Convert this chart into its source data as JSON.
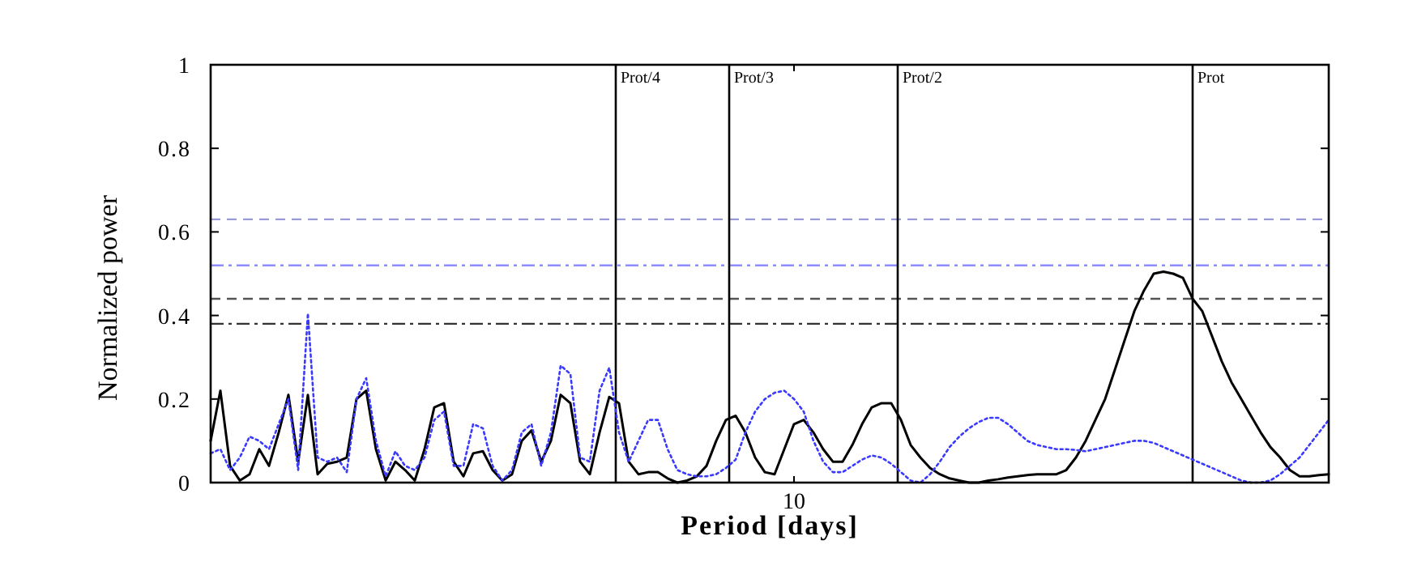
{
  "chart_data": {
    "type": "line",
    "xlabel": "Period [days]",
    "ylabel": "Normalized power",
    "categories": [
      null,
      null,
      null,
      null,
      null,
      null,
      null,
      null,
      null,
      null,
      null,
      null,
      null,
      null,
      null,
      null,
      null,
      null,
      null,
      null,
      null,
      null,
      null,
      null,
      null,
      null,
      null,
      null,
      null,
      null,
      null,
      null,
      null,
      null,
      null,
      null,
      null,
      null,
      null,
      null,
      null,
      null,
      null,
      null,
      null,
      null,
      null,
      null,
      null,
      null,
      null,
      null,
      null,
      null,
      null,
      null,
      null,
      null,
      null,
      null,
      "10",
      null,
      null,
      null,
      null,
      null,
      null,
      null,
      null,
      null,
      null,
      null,
      null,
      null,
      null,
      null,
      null,
      null,
      null,
      null,
      null,
      null,
      null,
      null,
      null,
      null,
      null,
      null,
      null,
      null,
      null,
      null,
      null,
      null,
      null,
      null,
      null,
      null,
      null,
      null,
      null,
      null,
      null,
      null,
      null,
      null,
      null,
      null,
      null,
      null,
      null,
      null,
      null,
      null,
      null,
      null
    ],
    "ylim": [
      0,
      1
    ],
    "yticks": [
      0,
      0.2,
      0.4,
      0.6,
      0.8,
      1
    ],
    "grid": false,
    "marker": "none",
    "series": [
      {
        "color": "#000000",
        "line_style": "solid",
        "values": [
          0.1,
          0.22,
          0.04,
          0.005,
          0.02,
          0.08,
          0.04,
          0.12,
          0.21,
          0.05,
          0.21,
          0.02,
          0.045,
          0.05,
          0.06,
          0.2,
          0.22,
          0.08,
          0.005,
          0.05,
          0.03,
          0.005,
          0.08,
          0.18,
          0.19,
          0.05,
          0.015,
          0.07,
          0.075,
          0.03,
          0.005,
          0.02,
          0.1,
          0.125,
          0.05,
          0.1,
          0.21,
          0.19,
          0.05,
          0.02,
          0.12,
          0.205,
          0.19,
          0.05,
          0.02,
          0.025,
          0.025,
          0.01,
          0,
          0.005,
          0.015,
          0.04,
          0.1,
          0.15,
          0.16,
          0.12,
          0.06,
          0.025,
          0.02,
          0.08,
          0.14,
          0.15,
          0.12,
          0.08,
          0.05,
          0.05,
          0.09,
          0.14,
          0.18,
          0.19,
          0.19,
          0.15,
          0.09,
          0.06,
          0.035,
          0.02,
          0.01,
          0.005,
          0,
          0,
          0.005,
          0.008,
          0.012,
          0.015,
          0.018,
          0.02,
          0.02,
          0.02,
          0.03,
          0.06,
          0.1,
          0.15,
          0.2,
          0.27,
          0.34,
          0.41,
          0.46,
          0.5,
          0.505,
          0.5,
          0.49,
          0.44,
          0.41,
          0.35,
          0.29,
          0.24,
          0.2,
          0.16,
          0.12,
          0.085,
          0.06,
          0.03,
          0.015,
          0.015,
          0.018,
          0.02
        ]
      },
      {
        "color": "#3a3aff",
        "line_style": "dotted",
        "values": [
          0.07,
          0.08,
          0.03,
          0.06,
          0.11,
          0.1,
          0.08,
          0.14,
          0.2,
          0.03,
          0.405,
          0.06,
          0.05,
          0.06,
          0.025,
          0.2,
          0.25,
          0.1,
          0.015,
          0.075,
          0.04,
          0.03,
          0.06,
          0.15,
          0.17,
          0.04,
          0.04,
          0.14,
          0.13,
          0.04,
          0.005,
          0.03,
          0.12,
          0.14,
          0.04,
          0.12,
          0.28,
          0.26,
          0.06,
          0.05,
          0.22,
          0.275,
          0.12,
          0.05,
          0.1,
          0.15,
          0.15,
          0.08,
          0.03,
          0.02,
          0.015,
          0.015,
          0.02,
          0.035,
          0.055,
          0.12,
          0.17,
          0.2,
          0.215,
          0.22,
          0.2,
          0.17,
          0.1,
          0.05,
          0.025,
          0.025,
          0.04,
          0.055,
          0.065,
          0.06,
          0.045,
          0.025,
          0.005,
          0,
          0.02,
          0.05,
          0.085,
          0.11,
          0.13,
          0.145,
          0.155,
          0.155,
          0.14,
          0.12,
          0.1,
          0.09,
          0.085,
          0.08,
          0.08,
          0.078,
          0.075,
          0.08,
          0.085,
          0.09,
          0.095,
          0.1,
          0.1,
          0.095,
          0.085,
          0.075,
          0.065,
          0.055,
          0.045,
          0.035,
          0.025,
          0.015,
          0.005,
          0,
          0,
          0.005,
          0.02,
          0.04,
          0.06,
          0.09,
          0.12,
          0.15
        ]
      }
    ],
    "ref_lines": [
      {
        "axis": "y",
        "value": 0.63,
        "color": "#9a9ad8",
        "line_style": "dashed"
      },
      {
        "axis": "y",
        "value": 0.52,
        "color": "#8c8cff",
        "line_style": "dashdot"
      },
      {
        "axis": "y",
        "value": 0.44,
        "color": "#555555",
        "line_style": "dashed"
      },
      {
        "axis": "y",
        "value": 0.38,
        "color": "#333333",
        "line_style": "dashdot"
      }
    ],
    "annotations": [
      "Prot/4",
      "Prot/3",
      "Prot/2",
      "Prot"
    ]
  }
}
